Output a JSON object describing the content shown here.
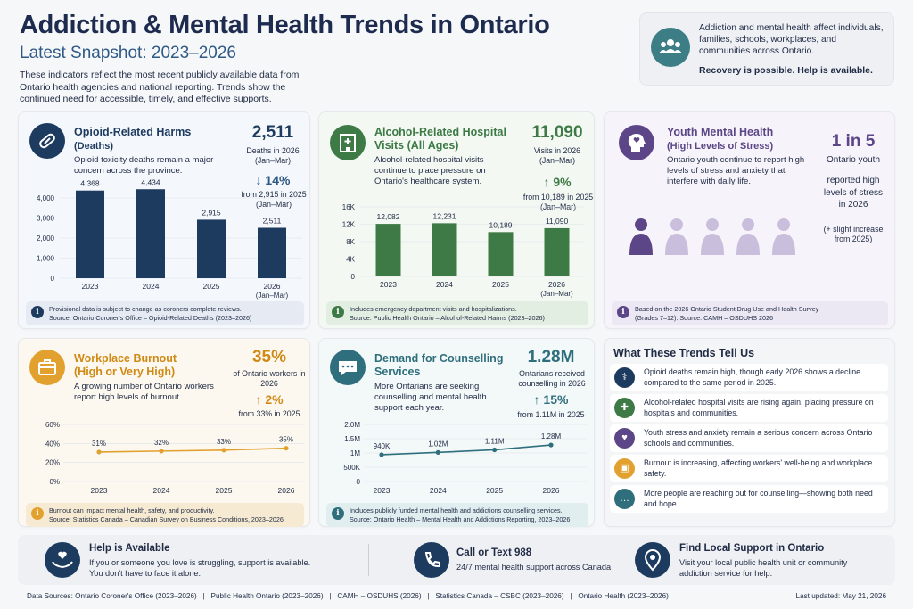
{
  "header": {
    "title": "Addiction & Mental Health Trends in Ontario",
    "subtitle": "Latest Snapshot: 2023–2026",
    "intro": "These indicators reflect the most recent publicly available data from Ontario health agencies and national reporting. Trends show the continued need for accessible, timely, and effective supports."
  },
  "callout": {
    "text": "Addiction and mental health affect individuals, families, schools, workplaces, and communities across Ontario.",
    "emphasis": "Recovery is possible. Help is available.",
    "icon": "people-group-icon"
  },
  "colors": {
    "navy": "#1d3a5f",
    "blue": "#2f5a86",
    "green": "#3d7a45",
    "purple": "#5c4687",
    "orange": "#e2a12f",
    "teal": "#2f6f7d"
  },
  "opioid": {
    "title_line1": "Opioid-Related Harms",
    "title_line2": "(Deaths)",
    "desc": "Opioid toxicity deaths remain a major concern across the province.",
    "big": "2,511",
    "big_label": "Deaths in 2026",
    "big_period": "(Jan–Mar)",
    "change": "↓ 14%",
    "change_note": "from 2,915 in 2025 (Jan–Mar)",
    "note_line1": "Provisional data is subject to change as coroners complete reviews.",
    "note_line2": "Source: Ontario Coroner's Office – Opioid-Related Deaths (2023–2026)",
    "icon": "pill-icon",
    "chart_data": {
      "type": "bar",
      "categories": [
        "2023",
        "2024",
        "2025",
        "2026"
      ],
      "category_sub": [
        "",
        "",
        "",
        "(Jan–Mar)"
      ],
      "values": [
        4368,
        4434,
        2915,
        2511
      ],
      "value_labels": [
        "4,368",
        "4,434",
        "2,915",
        "2,511"
      ],
      "yticks": [
        "0",
        "1,000",
        "2,000",
        "3,000",
        "4,000"
      ],
      "ylim": [
        0,
        4000
      ]
    }
  },
  "alcohol": {
    "title_line1": "Alcohol-Related Hospital",
    "title_line2": "Visits (All Ages)",
    "desc": "Alcohol-related hospital visits continue to place pressure on Ontario's healthcare system.",
    "big": "11,090",
    "big_label": "Visits in 2026",
    "big_period": "(Jan–Mar)",
    "change": "↑ 9%",
    "change_note": "from 10,189 in 2025 (Jan–Mar)",
    "note_line1": "Includes emergency department visits and hospitalizations.",
    "note_line2": "Source: Public Health Ontario – Alcohol-Related Harms (2023–2026)",
    "icon": "hospital-icon",
    "chart_data": {
      "type": "bar",
      "categories": [
        "2023",
        "2024",
        "2025",
        "2026"
      ],
      "category_sub": [
        "",
        "",
        "",
        "(Jan–Mar)"
      ],
      "values": [
        12082,
        12231,
        10189,
        11090
      ],
      "value_labels": [
        "12,082",
        "12,231",
        "10,189",
        "11,090"
      ],
      "yticks": [
        "0",
        "4K",
        "8K",
        "12K",
        "16K"
      ],
      "ylim": [
        0,
        16000
      ]
    }
  },
  "youth": {
    "title_line1": "Youth Mental Health",
    "title_line2": "(High Levels of Stress)",
    "desc": "Ontario youth continue to report high levels of stress and anxiety that interfere with daily life.",
    "big": "1 in 5",
    "big_label_1": "Ontario youth",
    "big_label_2": "reported high levels of stress in 2026",
    "change_note": "(+ slight increase from 2025)",
    "highlighted_people": 1,
    "total_people": 5,
    "note_line1": "Based on the 2026 Ontario Student Drug Use and Health Survey",
    "note_line2": "(Grades 7–12). Source: CAMH – OSDUHS 2026",
    "icon": "head-heart-icon"
  },
  "burnout": {
    "title_line1": "Workplace Burnout",
    "title_line2": "(High or Very High)",
    "desc": "A growing number of Ontario workers report high levels of burnout.",
    "big": "35%",
    "big_label": "of Ontario workers in 2026",
    "change": "↑ 2%",
    "change_note": "from 33% in 2025",
    "note_line1": "Burnout can impact mental health, safety, and productivity.",
    "note_line2": "Source: Statistics Canada – Canadian Survey on Business Conditions, 2023–2026",
    "icon": "briefcase-icon",
    "chart_data": {
      "type": "line",
      "categories": [
        "2023",
        "2024",
        "2025",
        "2026"
      ],
      "values": [
        31,
        32,
        33,
        35
      ],
      "value_labels": [
        "31%",
        "32%",
        "33%",
        "35%"
      ],
      "yticks": [
        "0%",
        "20%",
        "40%",
        "60%"
      ],
      "ylim": [
        0,
        60
      ]
    }
  },
  "counselling": {
    "title_line1": "Demand for Counselling",
    "title_line2": "Services",
    "desc": "More Ontarians are seeking counselling and mental health support each year.",
    "big": "1.28M",
    "big_label": "Ontarians received counselling in 2026",
    "change": "↑ 15%",
    "change_note": "from 1.11M in 2025",
    "note_line1": "Includes publicly funded mental health and addictions counselling services.",
    "note_line2": "Source: Ontario Health – Mental Health and Addictions Reporting, 2023–2026",
    "icon": "chat-bubble-icon",
    "chart_data": {
      "type": "line",
      "categories": [
        "2023",
        "2024",
        "2025",
        "2026"
      ],
      "values": [
        940000,
        1020000,
        1110000,
        1280000
      ],
      "value_labels": [
        "940K",
        "1.02M",
        "1.11M",
        "1.28M"
      ],
      "yticks": [
        "0",
        "500K",
        "1M",
        "1.5M",
        "2.0M"
      ],
      "ylim": [
        0,
        2000000
      ]
    }
  },
  "trends": {
    "title": "What These Trends Tell Us",
    "items": [
      {
        "text": "Opioid deaths remain high, though early 2026 shows a decline compared to the same period in 2025.",
        "icon": "pill-icon",
        "color": "#1d3a5f"
      },
      {
        "text": "Alcohol-related hospital visits are rising again, placing pressure on hospitals and communities.",
        "icon": "hospital-icon",
        "color": "#3d7a45"
      },
      {
        "text": "Youth stress and anxiety remain a serious concern across Ontario schools and communities.",
        "icon": "head-heart-icon",
        "color": "#5c4687"
      },
      {
        "text": "Burnout is increasing, affecting workers' well-being and workplace safety.",
        "icon": "briefcase-icon",
        "color": "#e2a12f"
      },
      {
        "text": "More people are reaching out for counselling—showing both need and hope.",
        "icon": "chat-bubble-icon",
        "color": "#2f6f7d"
      }
    ]
  },
  "help": {
    "title": "Help is Available",
    "desc_1": "If you or someone you love is struggling, support is available.",
    "desc_2": "You don't have to face it alone.",
    "call_title": "Call or Text 988",
    "call_desc": "24/7 mental health support across Canada",
    "local_title": "Find Local Support in Ontario",
    "local_desc_1": "Visit your local public health unit or community",
    "local_desc_2": "addiction service for help."
  },
  "footer": {
    "sources": "Data Sources: Ontario Coroner's Office (2023–2026)   |   Public Health Ontario (2023–2026)   |   CAMH – OSDUHS (2026)   |   Statistics Canada – CSBC (2023–2026)   |   Ontario Health (2023–2026)",
    "updated": "Last updated: May 21, 2026"
  }
}
